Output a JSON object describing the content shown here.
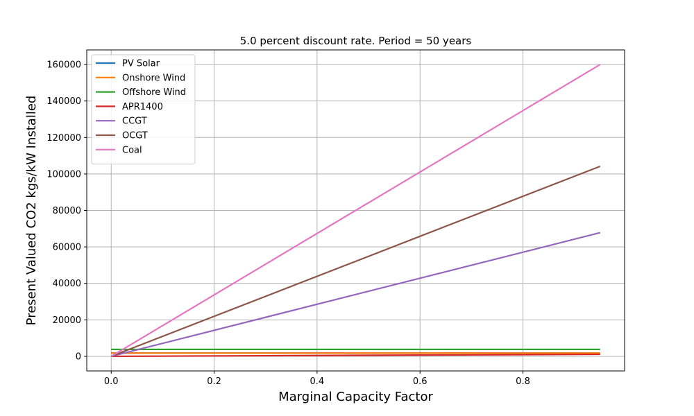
{
  "chart_data": {
    "type": "line",
    "title": "5.0 percent discount rate. Period = 50 years",
    "xlabel": "Marginal Capacity Factor",
    "ylabel": "Present Valued CO2 kgs/kW Installed",
    "xlim": [
      -0.0475,
      0.9975
    ],
    "ylim": [
      -8000,
      168000
    ],
    "xticks": [
      0.0,
      0.2,
      0.4,
      0.6,
      0.8
    ],
    "xtick_labels": [
      "0.0",
      "0.2",
      "0.4",
      "0.6",
      "0.8"
    ],
    "yticks": [
      0,
      20000,
      40000,
      60000,
      80000,
      100000,
      120000,
      140000,
      160000
    ],
    "ytick_labels": [
      "0",
      "20000",
      "40000",
      "60000",
      "80000",
      "100000",
      "120000",
      "140000",
      "160000"
    ],
    "grid": true,
    "legend_position": "top-left",
    "series": [
      {
        "name": "PV Solar",
        "color": "#1f77b4",
        "x": [
          0.0,
          0.95
        ],
        "y": [
          1800,
          1800
        ]
      },
      {
        "name": "Onshore Wind",
        "color": "#ff7f0e",
        "x": [
          0.0,
          0.95
        ],
        "y": [
          1800,
          1800
        ]
      },
      {
        "name": "Offshore Wind",
        "color": "#2ca02c",
        "x": [
          0.0,
          0.95
        ],
        "y": [
          3800,
          3800
        ]
      },
      {
        "name": "APR1400",
        "color": "#d62728",
        "x": [
          0.0,
          0.95
        ],
        "y": [
          0,
          1100
        ]
      },
      {
        "name": "CCGT",
        "color": "#9467bd",
        "x": [
          0.0,
          0.95
        ],
        "y": [
          0,
          67800
        ]
      },
      {
        "name": "OCGT",
        "color": "#8c564b",
        "x": [
          0.0,
          0.95
        ],
        "y": [
          0,
          104200
        ]
      },
      {
        "name": "Coal",
        "color": "#e377c2",
        "x": [
          0.0,
          0.95
        ],
        "y": [
          0,
          160000
        ]
      }
    ]
  }
}
